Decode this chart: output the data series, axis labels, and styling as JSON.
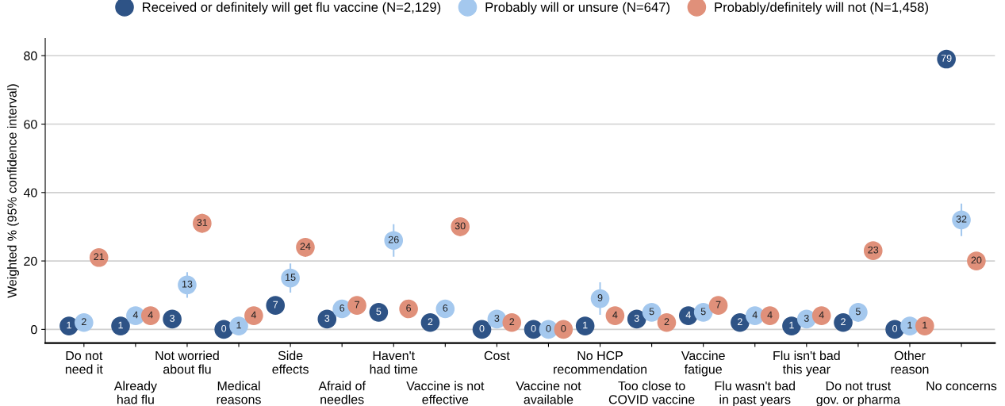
{
  "chart_data": {
    "type": "scatter",
    "ylabel": "Weighted % (95% confidence interval)",
    "categories": [
      "Do not\nneed it",
      "Already\nhad flu",
      "Not worried\nabout flu",
      "Medical\nreasons",
      "Side\neffects",
      "Afraid of\nneedles",
      "Haven't\nhad time",
      "Vaccine is not\neffective",
      "Cost",
      "Vaccine not\navailable",
      "No HCP\nrecommendation",
      "Too close to\nCOVID vaccine",
      "Vaccine\nfatigue",
      "Flu wasn't bad\nin past years",
      "Flu isn't bad\nthis year",
      "Do not trust\ngov. or pharma",
      "Other\nreason",
      "No concerns"
    ],
    "series": [
      {
        "name": "Received or definitely will get flu vaccine (N=2,129)",
        "color": "#2e5386",
        "values": [
          1,
          1,
          3,
          0,
          7,
          3,
          5,
          2,
          0,
          0,
          1,
          3,
          4,
          2,
          1,
          2,
          0,
          79
        ],
        "errors": [
          null,
          null,
          null,
          null,
          null,
          null,
          null,
          null,
          null,
          null,
          null,
          null,
          null,
          null,
          null,
          null,
          null,
          null
        ]
      },
      {
        "name": "Probably will or unsure (N=647)",
        "color": "#a4c8ee",
        "values": [
          2,
          4,
          13,
          1,
          15,
          6,
          26,
          6,
          3,
          0,
          9,
          5,
          5,
          4,
          3,
          5,
          1,
          32
        ],
        "errors": [
          null,
          null,
          3.5,
          null,
          4,
          null,
          4.5,
          2,
          null,
          null,
          4.5,
          2,
          null,
          null,
          null,
          2.5,
          null,
          4.5
        ]
      },
      {
        "name": "Probably/definitely will not (N=1,458)",
        "color": "#e0907a",
        "values": [
          21,
          4,
          31,
          4,
          24,
          7,
          6,
          30,
          2,
          0,
          4,
          2,
          7,
          4,
          4,
          23,
          1,
          20
        ],
        "errors": [
          1.5,
          null,
          2.5,
          null,
          2.5,
          null,
          null,
          2.5,
          null,
          null,
          null,
          null,
          null,
          null,
          null,
          2,
          null,
          1
        ]
      }
    ],
    "ylim": [
      -4,
      85
    ],
    "yticks": [
      0,
      20,
      40,
      60,
      80
    ],
    "grid": "y",
    "legend": "top",
    "marker": "circle",
    "data_labels": true
  }
}
